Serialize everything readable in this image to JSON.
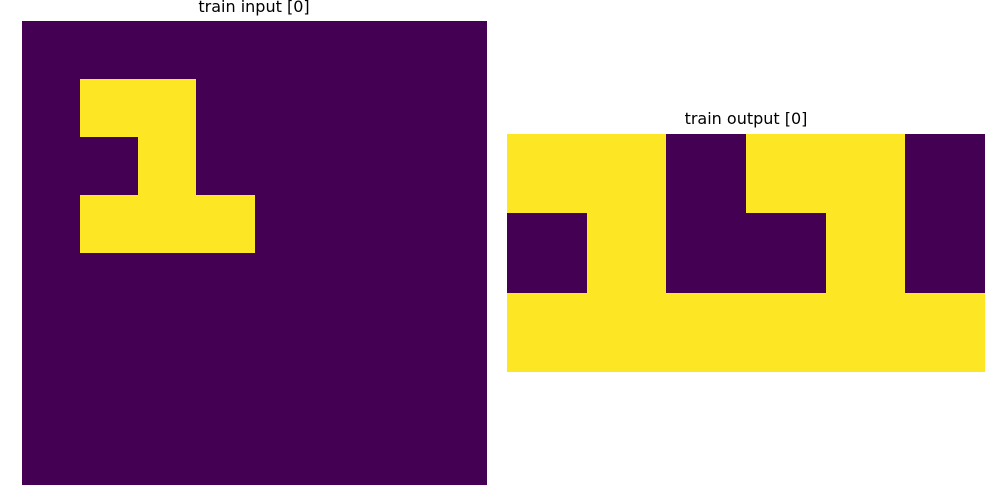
{
  "panels": {
    "input": {
      "title": "train input [0]",
      "grid": [
        [
          0,
          0,
          0,
          0,
          0,
          0,
          0,
          0
        ],
        [
          0,
          1,
          1,
          0,
          0,
          0,
          0,
          0
        ],
        [
          0,
          0,
          1,
          0,
          0,
          0,
          0,
          0
        ],
        [
          0,
          1,
          1,
          1,
          0,
          0,
          0,
          0
        ],
        [
          0,
          0,
          0,
          0,
          0,
          0,
          0,
          0
        ],
        [
          0,
          0,
          0,
          0,
          0,
          0,
          0,
          0
        ],
        [
          0,
          0,
          0,
          0,
          0,
          0,
          0,
          0
        ],
        [
          0,
          0,
          0,
          0,
          0,
          0,
          0,
          0
        ]
      ]
    },
    "output": {
      "title": "train output [0]",
      "grid": [
        [
          1,
          1,
          0,
          1,
          1,
          0
        ],
        [
          0,
          1,
          0,
          0,
          1,
          0
        ],
        [
          1,
          1,
          1,
          1,
          1,
          1
        ]
      ]
    }
  },
  "colors": {
    "0": "#440154",
    "1": "#fde725"
  }
}
